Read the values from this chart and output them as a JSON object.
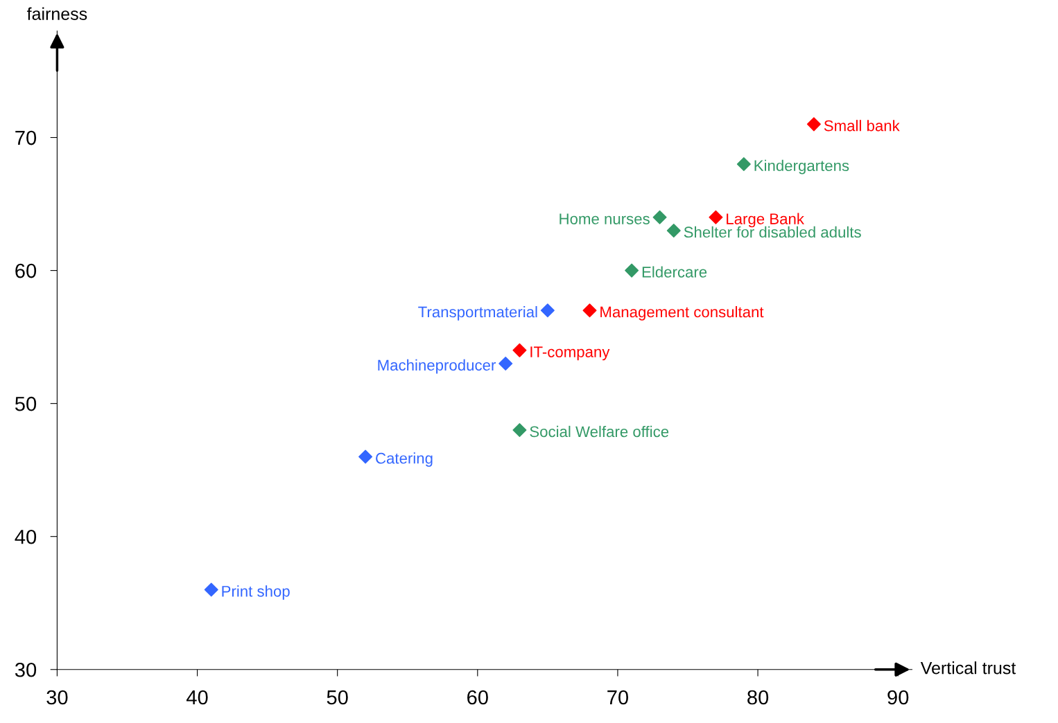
{
  "chart_data": {
    "type": "scatter",
    "xlabel": "Vertical trust",
    "ylabel": "fairness",
    "xlim": [
      30,
      91
    ],
    "ylim": [
      30,
      78
    ],
    "xticks": [
      30,
      40,
      50,
      60,
      70,
      80,
      90
    ],
    "yticks": [
      30,
      40,
      50,
      60,
      70
    ],
    "marker": "diamond",
    "grid": false,
    "legend": false,
    "series": [
      {
        "color": "#ff0000",
        "x": [
          84,
          77,
          68,
          63
        ],
        "values": [
          71,
          64,
          57,
          54
        ]
      },
      {
        "color": "#339966",
        "x": [
          79,
          73,
          74,
          71,
          63
        ],
        "values": [
          68,
          64,
          63,
          60,
          48
        ]
      },
      {
        "color": "#3366ff",
        "x": [
          65,
          62,
          52,
          41
        ],
        "values": [
          57,
          53,
          46,
          36
        ]
      }
    ],
    "annotations": [
      {
        "text": "Small bank",
        "x": 84,
        "y": 71
      },
      {
        "text": "Large Bank",
        "x": 77,
        "y": 64
      },
      {
        "text": "Management consultant",
        "x": 68,
        "y": 57
      },
      {
        "text": "IT-company",
        "x": 63,
        "y": 54
      },
      {
        "text": "Kindergartens",
        "x": 79,
        "y": 68
      },
      {
        "text": "Home nurses",
        "x": 73,
        "y": 64
      },
      {
        "text": "Shelter for disabled adults",
        "x": 74,
        "y": 63
      },
      {
        "text": "Eldercare",
        "x": 71,
        "y": 60
      },
      {
        "text": "Social Welfare office",
        "x": 63,
        "y": 48
      },
      {
        "text": "Transportmaterial",
        "x": 65,
        "y": 57
      },
      {
        "text": "Machineproducer",
        "x": 62,
        "y": 53
      },
      {
        "text": "Catering",
        "x": 52,
        "y": 46
      },
      {
        "text": "Print shop",
        "x": 41,
        "y": 36
      }
    ]
  }
}
